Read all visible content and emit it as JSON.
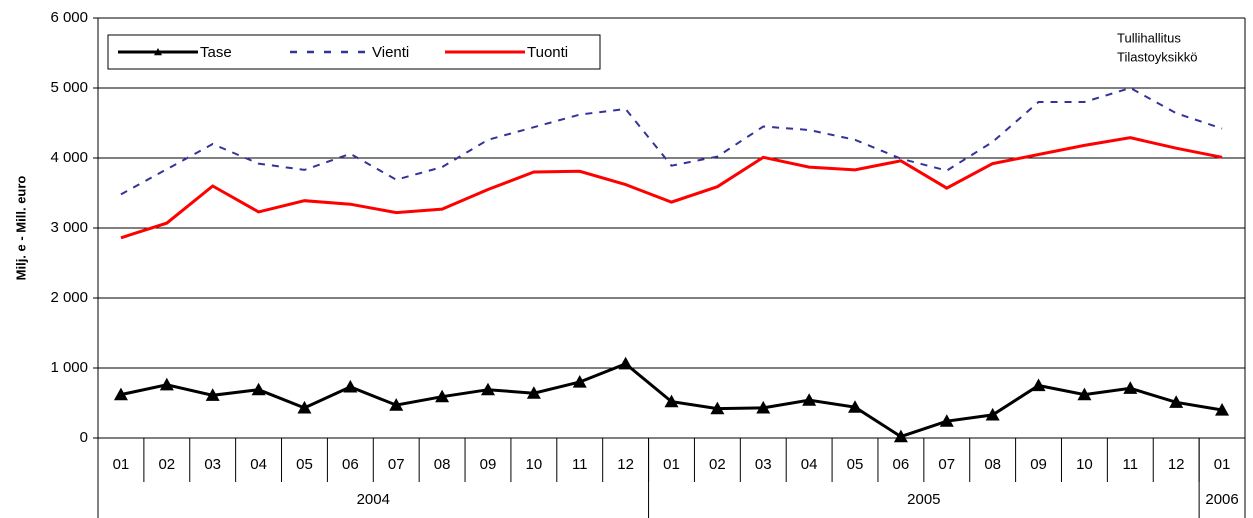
{
  "chart_data": {
    "type": "line",
    "y_label": "Milj. e - Mill. euro",
    "annotation": [
      "Tullihallitus",
      "Tilastoyksikkö"
    ],
    "groups": [
      {
        "label": "2004",
        "categories": [
          "01",
          "02",
          "03",
          "04",
          "05",
          "06",
          "07",
          "08",
          "09",
          "10",
          "11",
          "12"
        ]
      },
      {
        "label": "2005",
        "categories": [
          "01",
          "02",
          "03",
          "04",
          "05",
          "06",
          "07",
          "08",
          "09",
          "10",
          "11",
          "12"
        ]
      },
      {
        "label": "2006",
        "categories": [
          "01"
        ]
      }
    ],
    "series": [
      {
        "name": "Tase",
        "color": "#000000",
        "dash": false,
        "marker": "triangle",
        "values": [
          620,
          760,
          610,
          690,
          430,
          730,
          470,
          590,
          690,
          640,
          800,
          1060,
          520,
          420,
          430,
          540,
          440,
          20,
          240,
          330,
          750,
          620,
          710,
          510,
          400
        ]
      },
      {
        "name": "Vienti",
        "color": "#333399",
        "dash": true,
        "marker": null,
        "values": [
          3480,
          3840,
          4200,
          3920,
          3830,
          4060,
          3690,
          3870,
          4260,
          4440,
          4620,
          4700,
          3890,
          4020,
          4450,
          4400,
          4260,
          3990,
          3820,
          4230,
          4800,
          4800,
          5000,
          4640,
          4420
        ]
      },
      {
        "name": "Tuonti",
        "color": "#ff0000",
        "dash": false,
        "marker": null,
        "values": [
          2860,
          3070,
          3600,
          3230,
          3390,
          3340,
          3220,
          3270,
          3550,
          3800,
          3810,
          3620,
          3370,
          3590,
          4010,
          3870,
          3830,
          3960,
          3570,
          3920,
          4050,
          4180,
          4290,
          4140,
          4010
        ]
      }
    ],
    "ylim": [
      0,
      6000
    ],
    "yticks": [
      0,
      {
        "value": 1000,
        "label": "1 000"
      },
      {
        "value": 2000,
        "label": "2 000"
      },
      {
        "value": 3000,
        "label": "3 000"
      },
      {
        "value": 4000,
        "label": "4 000"
      },
      {
        "value": 5000,
        "label": "5 000"
      },
      {
        "value": 6000,
        "label": "6 000"
      }
    ],
    "grid": true,
    "legend": "top-left"
  }
}
